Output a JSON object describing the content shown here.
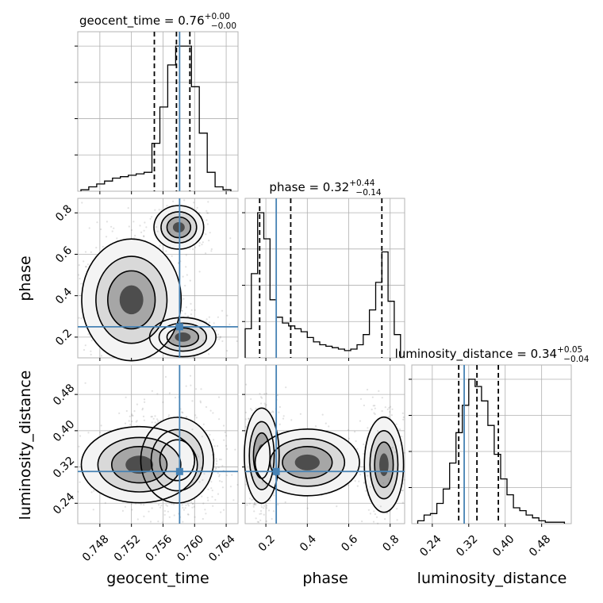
{
  "chart_data": {
    "type": "corner",
    "parameters": [
      {
        "name": "geocent_time",
        "label": "geocent_time",
        "range": [
          0.7452,
          0.7655
        ],
        "ticks": [
          0.748,
          0.752,
          0.756,
          0.76,
          0.764
        ],
        "tick_labels": [
          "0.748",
          "0.752",
          "0.756",
          "0.760",
          "0.764"
        ],
        "truth": 0.7581,
        "quantiles": [
          0.7549,
          0.7577,
          0.7594
        ],
        "title_name": "geocent_time",
        "title_median": "0.76",
        "title_plus": "+0.00",
        "title_minus": "−0.00",
        "hist_bins": {
          "edges": [
            0.7456,
            0.7466,
            0.7476,
            0.7486,
            0.7496,
            0.7506,
            0.7516,
            0.7526,
            0.7536,
            0.7546,
            0.7556,
            0.7566,
            0.7576,
            0.7586,
            0.7596,
            0.7606,
            0.7616,
            0.7626,
            0.7636,
            0.7646
          ],
          "counts": [
            1,
            3,
            5,
            7,
            9,
            10,
            11,
            12,
            13,
            33,
            58,
            87,
            100,
            100,
            72,
            40,
            13,
            3,
            1
          ]
        }
      },
      {
        "name": "phase",
        "label": "phase",
        "range": [
          0.1,
          0.87
        ],
        "ticks": [
          0.2,
          0.4,
          0.6,
          0.8
        ],
        "tick_labels": [
          "0.2",
          "0.4",
          "0.6",
          "0.8"
        ],
        "truth": 0.25,
        "quantiles": [
          0.17,
          0.32,
          0.76
        ],
        "title_name": "phase",
        "title_median": "0.32",
        "title_plus": "+0.44",
        "title_minus": "−0.14",
        "hist_bins": {
          "edges": [
            0.1,
            0.13,
            0.16,
            0.19,
            0.22,
            0.25,
            0.28,
            0.31,
            0.34,
            0.37,
            0.4,
            0.43,
            0.46,
            0.49,
            0.52,
            0.55,
            0.58,
            0.61,
            0.64,
            0.67,
            0.7,
            0.73,
            0.76,
            0.79,
            0.82,
            0.85
          ],
          "counts": [
            20,
            58,
            100,
            82,
            40,
            28,
            24,
            22,
            20,
            18,
            14,
            11,
            9,
            8,
            7,
            6,
            5,
            6,
            9,
            16,
            33,
            52,
            73,
            39,
            16
          ]
        }
      },
      {
        "name": "luminosity_distance",
        "label": "luminosity_distance",
        "range": [
          0.195,
          0.545
        ],
        "ticks": [
          0.24,
          0.32,
          0.4,
          0.48
        ],
        "tick_labels": [
          "0.24",
          "0.32",
          "0.40",
          "0.48"
        ],
        "truth": 0.31,
        "quantiles": [
          0.298,
          0.338,
          0.385
        ],
        "title_name": "luminosity_distance",
        "title_median": "0.34",
        "title_plus": "+0.05",
        "title_minus": "−0.04",
        "hist_bins": {
          "edges": [
            0.208,
            0.222,
            0.236,
            0.25,
            0.264,
            0.278,
            0.292,
            0.306,
            0.32,
            0.334,
            0.348,
            0.362,
            0.376,
            0.39,
            0.404,
            0.418,
            0.432,
            0.446,
            0.46,
            0.474,
            0.488,
            0.502,
            0.516,
            0.53
          ],
          "counts": [
            2,
            6,
            7,
            14,
            24,
            42,
            63,
            82,
            100,
            95,
            85,
            68,
            48,
            31,
            20,
            11,
            9,
            6,
            4,
            2,
            1,
            1,
            1
          ]
        }
      }
    ],
    "pairs": [
      {
        "x": "geocent_time",
        "y": "phase",
        "clusters": [
          {
            "x_mean": 0.758,
            "y_mean": 0.73,
            "x_sd": 0.0015,
            "y_sd": 0.05,
            "weight": 0.24
          },
          {
            "x_mean": 0.7585,
            "y_mean": 0.2,
            "x_sd": 0.002,
            "y_sd": 0.045,
            "weight": 0.42
          },
          {
            "x_mean": 0.752,
            "y_mean": 0.38,
            "x_sd": 0.003,
            "y_sd": 0.14,
            "weight": 0.34
          }
        ]
      },
      {
        "x": "geocent_time",
        "y": "luminosity_distance",
        "clusters": [
          {
            "x_mean": 0.7578,
            "y_mean": 0.335,
            "x_sd": 0.0022,
            "y_sd": 0.045,
            "weight": 0.75
          },
          {
            "x_mean": 0.753,
            "y_mean": 0.325,
            "x_sd": 0.0035,
            "y_sd": 0.04,
            "weight": 0.25
          }
        ]
      },
      {
        "x": "phase",
        "y": "luminosity_distance",
        "clusters": [
          {
            "x_mean": 0.18,
            "y_mean": 0.345,
            "x_sd": 0.04,
            "y_sd": 0.05,
            "weight": 0.5
          },
          {
            "x_mean": 0.77,
            "y_mean": 0.325,
            "x_sd": 0.045,
            "y_sd": 0.05,
            "weight": 0.33
          },
          {
            "x_mean": 0.4,
            "y_mean": 0.33,
            "x_sd": 0.12,
            "y_sd": 0.035,
            "weight": 0.17
          }
        ]
      }
    ],
    "grid": true,
    "truth_color": "#4682b4",
    "contour_color": "#000000"
  }
}
